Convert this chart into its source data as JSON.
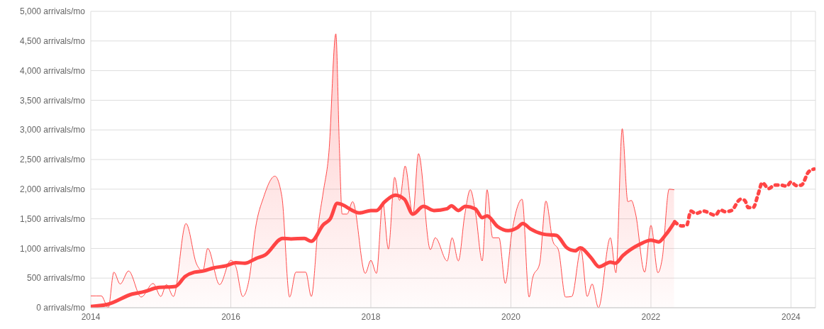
{
  "chart_data": {
    "type": "line",
    "xlim": [
      2014,
      2024.35
    ],
    "xticks": [
      2014,
      2016,
      2018,
      2020,
      2022,
      2024
    ],
    "ylim": [
      0,
      5000
    ],
    "yticks": [
      {
        "value": 0,
        "label": "0 arrivals/mo"
      },
      {
        "value": 500,
        "label": "500 arrivals/mo"
      },
      {
        "value": 1000,
        "label": "1,000 arrivals/mo"
      },
      {
        "value": 1500,
        "label": "1,500 arrivals/mo"
      },
      {
        "value": 2000,
        "label": "2,000 arrivals/mo"
      },
      {
        "value": 2500,
        "label": "2,500 arrivals/mo"
      },
      {
        "value": 3000,
        "label": "3,000 arrivals/mo"
      },
      {
        "value": 3500,
        "label": "3,500 arrivals/mo"
      },
      {
        "value": 4000,
        "label": "4,000 arrivals/mo"
      },
      {
        "value": 4500,
        "label": "4,500 arrivals/mo"
      },
      {
        "value": 5000,
        "label": "5,000 arrivals/mo"
      }
    ],
    "grid": true,
    "marker": "none",
    "series": [
      {
        "type": "area",
        "color": "#ff4a4a",
        "line_style": "solid",
        "x": [
          2014,
          2014.15,
          2014.25,
          2014.33,
          2014.42,
          2014.54,
          2014.72,
          2014.89,
          2015,
          2015.08,
          2015.18,
          2015.36,
          2015.51,
          2015.6,
          2015.67,
          2015.84,
          2016,
          2016.07,
          2016.17,
          2016.27,
          2016.35,
          2016.47,
          2016.63,
          2016.73,
          2016.84,
          2016.93,
          2017.07,
          2017.15,
          2017.25,
          2017.32,
          2017.4,
          2017.5,
          2017.55,
          2017.59,
          2017.66,
          2017.74,
          2017.92,
          2018,
          2018.08,
          2018.17,
          2018.25,
          2018.34,
          2018.41,
          2018.49,
          2018.6,
          2018.68,
          2018.85,
          2018.92,
          2019.09,
          2019.16,
          2019.25,
          2019.34,
          2019.42,
          2019.5,
          2019.59,
          2019.66,
          2019.74,
          2019.83,
          2019.92,
          2020.01,
          2020.16,
          2020.26,
          2020.31,
          2020.41,
          2020.5,
          2020.6,
          2020.68,
          2020.78,
          2020.87,
          2021,
          2021.09,
          2021.16,
          2021.25,
          2021.42,
          2021.5,
          2021.59,
          2021.67,
          2021.72,
          2021.78,
          2021.91,
          2022,
          2022.1,
          2022.16,
          2022.26,
          2022.33
        ],
        "values": [
          200,
          200,
          0,
          600,
          400,
          620,
          180,
          410,
          190,
          390,
          190,
          1420,
          740,
          620,
          1000,
          390,
          800,
          700,
          190,
          540,
          1320,
          1870,
          2220,
          1870,
          180,
          600,
          600,
          190,
          1400,
          1950,
          2610,
          4620,
          2730,
          1580,
          1580,
          1790,
          580,
          800,
          580,
          1790,
          990,
          2200,
          1810,
          2390,
          1560,
          2600,
          980,
          1180,
          790,
          1180,
          790,
          1560,
          1990,
          1560,
          790,
          1990,
          1180,
          1180,
          410,
          1240,
          1830,
          180,
          500,
          740,
          1800,
          1120,
          970,
          180,
          190,
          980,
          190,
          400,
          0,
          1180,
          590,
          3020,
          1790,
          1810,
          1590,
          600,
          1390,
          590,
          820,
          2000,
          1990
        ]
      },
      {
        "color": "#ff4545",
        "line_style": "solid",
        "x": [
          2014,
          2014.25,
          2014.59,
          2014.76,
          2014.96,
          2015.21,
          2015.35,
          2015.48,
          2015.61,
          2015.75,
          2015.94,
          2016.07,
          2016.2,
          2016.36,
          2016.49,
          2016.74,
          2016.86,
          2017.05,
          2017.15,
          2017.32,
          2017.42,
          2017.52,
          2017.84,
          2018,
          2018.08,
          2018.2,
          2018.35,
          2018.48,
          2018.6,
          2018.75,
          2018.9,
          2019.09,
          2019.15,
          2019.25,
          2019.35,
          2019.49,
          2019.59,
          2019.66,
          2019.81,
          2019.96,
          2020.09,
          2020.17,
          2020.28,
          2020.47,
          2020.65,
          2020.8,
          2020.92,
          2020.99,
          2021.14,
          2021.26,
          2021.42,
          2021.49,
          2021.6,
          2021.84,
          2022,
          2022.11,
          2022.21,
          2022.34
        ],
        "values": [
          20,
          60,
          230,
          270,
          340,
          360,
          530,
          600,
          620,
          670,
          710,
          760,
          750,
          830,
          890,
          1170,
          1160,
          1170,
          1120,
          1400,
          1500,
          1760,
          1600,
          1640,
          1640,
          1790,
          1900,
          1830,
          1580,
          1710,
          1640,
          1670,
          1720,
          1640,
          1710,
          1670,
          1520,
          1550,
          1370,
          1300,
          1350,
          1420,
          1330,
          1240,
          1220,
          1010,
          960,
          1010,
          850,
          690,
          770,
          750,
          880,
          1070,
          1140,
          1110,
          1230,
          1450
        ]
      },
      {
        "color": "#ff4545",
        "line_style": "dotted",
        "x": [
          2022.34,
          2022.44,
          2022.51,
          2022.57,
          2022.64,
          2022.75,
          2022.92,
          2022.99,
          2023.06,
          2023.15,
          2023.28,
          2023.34,
          2023.39,
          2023.46,
          2023.53,
          2023.59,
          2023.68,
          2023.77,
          2023.85,
          2023.94,
          2024,
          2024.08,
          2024.15,
          2024.25,
          2024.33
        ],
        "values": [
          1450,
          1380,
          1390,
          1630,
          1590,
          1630,
          1560,
          1650,
          1620,
          1640,
          1830,
          1810,
          1690,
          1690,
          1910,
          2110,
          2010,
          2070,
          2070,
          2050,
          2120,
          2060,
          2070,
          2290,
          2340
        ]
      }
    ]
  }
}
